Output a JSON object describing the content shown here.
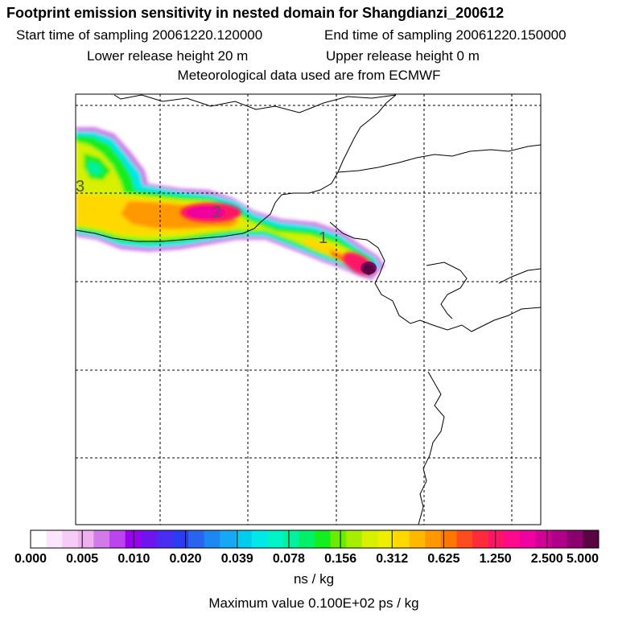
{
  "header": {
    "title": "Footprint emission sensitivity in nested domain for Shangdianzi_200612",
    "start_time": "Start time of sampling 20061220.120000",
    "end_time": "End time of sampling 20061220.150000",
    "lower_height": "Lower release height   20 m",
    "upper_height": "Upper release height    0 m",
    "met_data": "Meteorological data used are from ECMWF"
  },
  "chart_data": {
    "type": "heatmap",
    "title": "Footprint emission sensitivity in nested domain for Shangdianzi_200612",
    "grid": true,
    "contour_labels": [
      "3",
      "2",
      "1"
    ],
    "colorbar": {
      "tick_labels": [
        "0.000",
        "0.005",
        "0.010",
        "0.020",
        "0.039",
        "0.078",
        "0.156",
        "0.312",
        "0.625",
        "1.250",
        "2.500",
        "5.000"
      ],
      "unit": "ns / kg",
      "colors": [
        "#ffffff",
        "#fce6fc",
        "#f6ccf6",
        "#eeb0f0",
        "#d27ae8",
        "#bb44ee",
        "#9900ee",
        "#6f14ee",
        "#4a2cf0",
        "#2a3cf0",
        "#2a64ee",
        "#1e88f2",
        "#16a8f4",
        "#00cced",
        "#00e8e8",
        "#00f2c8",
        "#00f29c",
        "#00f06a",
        "#14ee1e",
        "#6aec00",
        "#a6ee00",
        "#d6f000",
        "#f0ee00",
        "#ffd800",
        "#ffb800",
        "#ff9800",
        "#ff7600",
        "#ff4c1e",
        "#ff2a3a",
        "#ff1466",
        "#ff0a8c",
        "#f0009e",
        "#d20096",
        "#b0008a",
        "#8a006e",
        "#5a0444"
      ]
    },
    "max_value": "Maximum value  0.100E+02 ps / kg"
  }
}
